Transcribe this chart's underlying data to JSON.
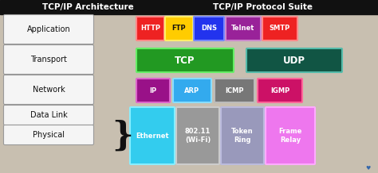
{
  "bg_color": "#c8bfb0",
  "title_left": "TCP/IP Architecture",
  "title_right": "TCP/IP Protocol Suite",
  "title_color": "#ffffff",
  "title_bg": "#111111",
  "protocol_rows": [
    {
      "protocols": [
        {
          "text": "HTTP",
          "bg": "#ee2222",
          "fg": "#ffffff",
          "border": "#ff8888"
        },
        {
          "text": "FTP",
          "bg": "#ffcc00",
          "fg": "#111111",
          "border": "#ffee66"
        },
        {
          "text": "DNS",
          "bg": "#2233ee",
          "fg": "#ffffff",
          "border": "#7788ff"
        },
        {
          "text": "Telnet",
          "bg": "#992299",
          "fg": "#ffffff",
          "border": "#cc88cc"
        },
        {
          "text": "SMTP",
          "bg": "#ee2222",
          "fg": "#ffffff",
          "border": "#ff8888"
        }
      ]
    },
    {
      "protocols": [
        {
          "text": "TCP",
          "bg": "#229922",
          "fg": "#ffffff",
          "border": "#66ee66"
        },
        {
          "text": "UDP",
          "bg": "#115544",
          "fg": "#ffffff",
          "border": "#55bbaa"
        }
      ]
    },
    {
      "protocols": [
        {
          "text": "IP",
          "bg": "#991188",
          "fg": "#ffffff",
          "border": "#dd66cc"
        },
        {
          "text": "ARP",
          "bg": "#33aaee",
          "fg": "#ffffff",
          "border": "#88ddff"
        },
        {
          "text": "ICMP",
          "bg": "#777777",
          "fg": "#ffffff",
          "border": "#bbbbbb"
        },
        {
          "text": "IGMP",
          "bg": "#cc1166",
          "fg": "#ffffff",
          "border": "#ff6699"
        }
      ]
    },
    {
      "protocols": [
        {
          "text": "Ethernet",
          "bg": "#33ccee",
          "fg": "#ffffff",
          "border": "#88eeff"
        },
        {
          "text": "802.11\n(Wi-Fi)",
          "bg": "#999999",
          "fg": "#ffffff",
          "border": "#cccccc"
        },
        {
          "text": "Token\nRing",
          "bg": "#9999bb",
          "fg": "#ffffff",
          "border": "#bbbbdd"
        },
        {
          "text": "Frame\nRelay",
          "bg": "#ee77ee",
          "fg": "#ffffff",
          "border": "#ffaaff"
        }
      ]
    }
  ]
}
